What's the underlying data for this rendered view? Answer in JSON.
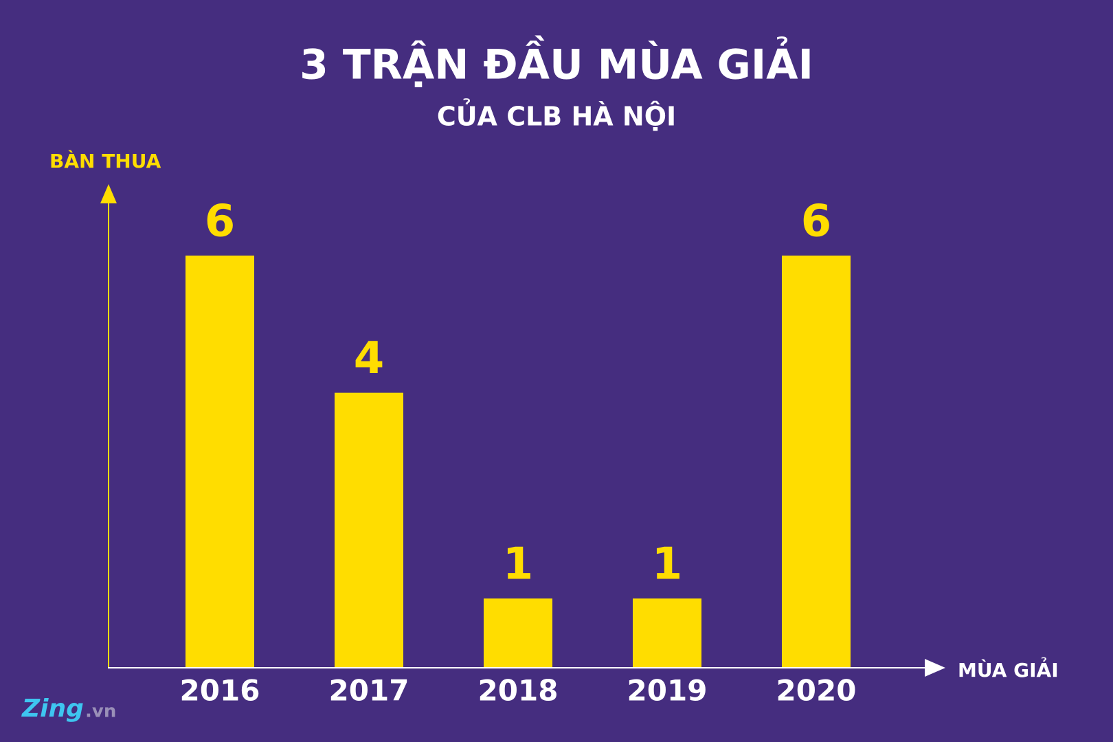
{
  "chart_data": {
    "type": "bar",
    "title": "3 TRẬN ĐẦU MÙA GIẢI",
    "subtitle": "CỦA CLB HÀ NỘI",
    "y_label": "BÀN THUA",
    "x_label": "MÙA GIẢI",
    "categories": [
      "2016",
      "2017",
      "2018",
      "2019",
      "2020"
    ],
    "values": [
      6,
      4,
      1,
      1,
      6
    ],
    "color": "#ffdd00",
    "ylim": [
      0,
      6
    ],
    "grid": false,
    "logo": "Zing",
    "logo_suffix": ".vn"
  }
}
